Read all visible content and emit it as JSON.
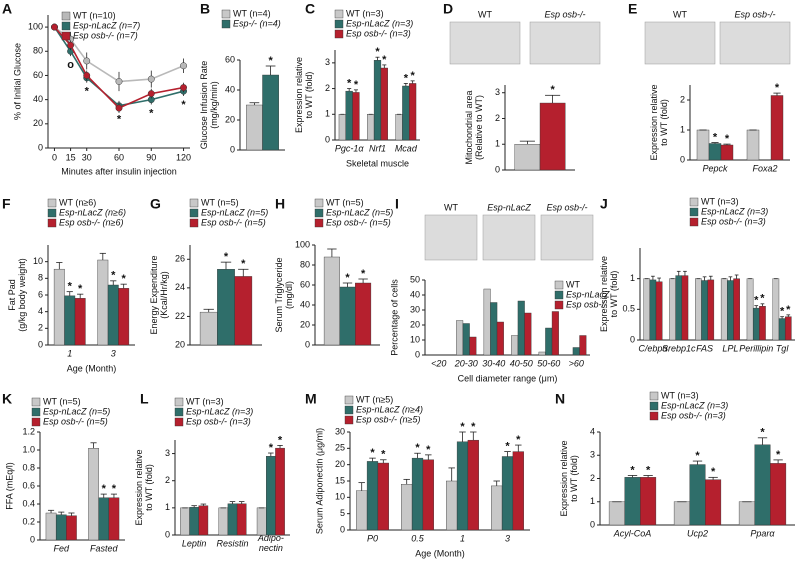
{
  "chart_data": [
    {
      "type": "line",
      "label": "A",
      "ylabel": "% of Initial Glucose",
      "xlabel": "Minutes after insulin injection",
      "x": [
        0,
        15,
        30,
        60,
        90,
        120
      ],
      "xlim": [
        -6,
        126
      ],
      "xticks": [
        0,
        15,
        30,
        60,
        90,
        120
      ],
      "ylim": [
        0,
        110
      ],
      "yticks": [
        0,
        20,
        40,
        60,
        80,
        100
      ],
      "series": [
        {
          "name": "WT (n=10)",
          "color": "#b9b9b9",
          "values": [
            100,
            90,
            72,
            55,
            57,
            68
          ],
          "errors": [
            0,
            6,
            7,
            8,
            7,
            6
          ]
        },
        {
          "name": "Esp-nLacZ (n=7)",
          "color": "#2f6e6a",
          "values": [
            100,
            80,
            58,
            35,
            40,
            47
          ],
          "errors": [
            0,
            4,
            4,
            4,
            4,
            4
          ],
          "marks": [
            null,
            "o",
            "*",
            "*",
            "*",
            "*"
          ]
        },
        {
          "name": "Esp osb-/- (n=7)",
          "color": "#b5202e",
          "values": [
            100,
            85,
            60,
            33,
            45,
            50
          ],
          "errors": [
            0,
            4,
            4,
            4,
            4,
            4
          ]
        }
      ]
    },
    {
      "type": "bar",
      "label": "B",
      "ylabel": "Glucose Infusion Rate\n(mg/kg/min)",
      "categories": [
        null
      ],
      "ylim": [
        0,
        60
      ],
      "yticks": [
        0,
        20,
        40,
        60
      ],
      "series": [
        {
          "name": "WT (n=4)",
          "color": "#c8c8c8",
          "values": [
            30
          ],
          "errors": [
            1.5
          ]
        },
        {
          "name": "Esp-/- (n=4)",
          "color": "#2f6e6a",
          "values": [
            50
          ],
          "errors": [
            6
          ],
          "marks": [
            "*"
          ]
        }
      ]
    },
    {
      "type": "bar",
      "label": "C",
      "ylabel": "Expression relative\nto WT (fold)",
      "xlabel": "Skeletal muscle",
      "categories": [
        "Pgc-1α",
        "Nrf1",
        "Mcad"
      ],
      "ylim": [
        0,
        3.5
      ],
      "yticks": [
        0,
        1,
        2,
        3
      ],
      "series": [
        {
          "name": "WT (n=3)",
          "color": "#c8c8c8",
          "values": [
            1,
            1,
            1
          ],
          "errors": [
            0,
            0,
            0
          ]
        },
        {
          "name": "Esp-nLacZ (n=3)",
          "color": "#2f6e6a",
          "values": [
            1.9,
            3.1,
            2.1
          ],
          "errors": [
            0.1,
            0.12,
            0.1
          ],
          "marks": [
            "*",
            "*",
            "*"
          ]
        },
        {
          "name": "Esp osb-/- (n=3)",
          "color": "#b5202e",
          "values": [
            1.85,
            2.8,
            2.2
          ],
          "errors": [
            0.1,
            0.12,
            0.1
          ],
          "marks": [
            "*",
            "*",
            "*"
          ]
        }
      ]
    },
    {
      "type": "bar",
      "label": "D",
      "ylabel": "Mitochondrial area\n(Relative to WT)",
      "images": [
        "WT",
        "Esp osb-/-"
      ],
      "categories": [
        null
      ],
      "ylim": [
        0,
        3.3
      ],
      "yticks": [
        0,
        1,
        2,
        3
      ],
      "series": [
        {
          "color": "#c8c8c8",
          "values": [
            1
          ],
          "errors": [
            0.12
          ]
        },
        {
          "color": "#b5202e",
          "values": [
            2.6
          ],
          "errors": [
            0.3
          ],
          "marks": [
            "*"
          ]
        }
      ]
    },
    {
      "type": "bar",
      "label": "E",
      "ylabel": "Expression relative\nto WT (fold)",
      "images": [
        "WT",
        "Esp osb-/-"
      ],
      "categories": [
        "Pepck",
        "Foxa2"
      ],
      "ylim": [
        0,
        2.5
      ],
      "yticks": [
        0,
        1,
        2
      ],
      "series": [
        {
          "color": "#c8c8c8",
          "values": [
            1,
            1
          ],
          "errors": [
            0,
            0
          ]
        },
        {
          "color": "#2f6e6a",
          "values": [
            0.55,
            null
          ],
          "errors": [
            0.03,
            null
          ],
          "marks": [
            "*",
            null
          ]
        },
        {
          "color": "#b5202e",
          "values": [
            0.5,
            2.15
          ],
          "errors": [
            0.03,
            0.08
          ],
          "marks": [
            "*",
            "*"
          ]
        }
      ]
    },
    {
      "type": "bar",
      "label": "F",
      "ylabel": "Fat Pad\n(g/kg body weight)",
      "xlabel": "Age (Month)",
      "categories": [
        "1",
        "3"
      ],
      "ylim": [
        0,
        12
      ],
      "yticks": [
        0,
        2,
        4,
        6,
        8,
        10
      ],
      "series": [
        {
          "name": "WT (n≥6)",
          "color": "#c8c8c8",
          "values": [
            9.1,
            10.2
          ],
          "errors": [
            0.8,
            0.8
          ]
        },
        {
          "name": "Esp-nLacZ (n≥6)",
          "color": "#2f6e6a",
          "values": [
            5.9,
            7.2
          ],
          "errors": [
            0.5,
            0.5
          ],
          "marks": [
            "*",
            "*"
          ]
        },
        {
          "name": "Esp osb-/- (n≥6)",
          "color": "#b5202e",
          "values": [
            5.6,
            6.8
          ],
          "errors": [
            0.5,
            0.5
          ],
          "marks": [
            "*",
            "*"
          ]
        }
      ]
    },
    {
      "type": "bar",
      "label": "G",
      "ylabel": "Energy Expenditure\n(Kcal/Hr/kg)",
      "categories": [
        null
      ],
      "ylim": [
        20,
        27
      ],
      "yticks": [
        20,
        22,
        24,
        26
      ],
      "series": [
        {
          "name": "WT (n=5)",
          "color": "#c8c8c8",
          "values": [
            22.3
          ],
          "errors": [
            0.2
          ]
        },
        {
          "name": "Esp-nLacZ (n=5)",
          "color": "#2f6e6a",
          "values": [
            25.3
          ],
          "errors": [
            0.5
          ],
          "marks": [
            "*"
          ]
        },
        {
          "name": "Esp osb-/- (n=5)",
          "color": "#b5202e",
          "values": [
            24.8
          ],
          "errors": [
            0.5
          ],
          "marks": [
            "*"
          ]
        }
      ]
    },
    {
      "type": "bar",
      "label": "H",
      "ylabel": "Serum Triglyceride\n(mg/dl)",
      "categories": [
        null
      ],
      "ylim": [
        0,
        100
      ],
      "yticks": [
        0,
        20,
        40,
        60,
        80,
        100
      ],
      "series": [
        {
          "name": "WT (n=5)",
          "color": "#c8c8c8",
          "values": [
            88
          ],
          "errors": [
            8
          ]
        },
        {
          "name": "Esp-nLacZ (n=5)",
          "color": "#2f6e6a",
          "values": [
            58
          ],
          "errors": [
            4
          ],
          "marks": [
            "*"
          ]
        },
        {
          "name": "Esp osb-/- (n=5)",
          "color": "#b5202e",
          "values": [
            62
          ],
          "errors": [
            4
          ],
          "marks": [
            "*"
          ]
        }
      ]
    },
    {
      "type": "bar",
      "label": "I",
      "ylabel": "Percentage of cells",
      "xlabel": "Cell diameter range (μm)",
      "images": [
        "WT",
        "Esp-nLacZ",
        "Esp osb-/-"
      ],
      "categories": [
        "<20",
        "20-30",
        "30-40",
        "40-50",
        "50-60",
        ">60"
      ],
      "ylim": [
        0,
        50
      ],
      "yticks": [
        0,
        10,
        20,
        30,
        40,
        50
      ],
      "series": [
        {
          "name": "WT",
          "color": "#c8c8c8",
          "values": [
            0,
            23,
            44,
            13,
            2,
            0
          ]
        },
        {
          "name": "Esp-nLacZ",
          "color": "#2f6e6a",
          "values": [
            0,
            21,
            35,
            36,
            18,
            5
          ]
        },
        {
          "name": "Esp osb-/-",
          "color": "#b5202e",
          "values": [
            0,
            12,
            22,
            28,
            29,
            13
          ]
        }
      ]
    },
    {
      "type": "bar",
      "label": "J",
      "ylabel": "Expression relative\nto WT (fold)",
      "categories": [
        "C/ebpα",
        "Srebp1c",
        "FAS",
        "LPL",
        "Perillipin",
        "Tgl"
      ],
      "ylim": [
        0,
        1.5
      ],
      "yticks": [
        0,
        0.5,
        1
      ],
      "series": [
        {
          "name": "WT (n=3)",
          "color": "#c8c8c8",
          "values": [
            1,
            1,
            1,
            1,
            1,
            1
          ],
          "errors": [
            0,
            0,
            0,
            0,
            0,
            0
          ]
        },
        {
          "name": "Esp-nLacZ (n=3)",
          "color": "#2f6e6a",
          "values": [
            0.98,
            1.05,
            0.97,
            0.97,
            0.52,
            0.35
          ],
          "errors": [
            0.06,
            0.07,
            0.06,
            0.06,
            0.04,
            0.03
          ],
          "marks": [
            null,
            null,
            null,
            null,
            "*",
            "*"
          ]
        },
        {
          "name": "Esp osb-/- (n=3)",
          "color": "#b5202e",
          "values": [
            0.95,
            1.05,
            0.98,
            1.0,
            0.55,
            0.38
          ],
          "errors": [
            0.06,
            0.07,
            0.06,
            0.06,
            0.04,
            0.03
          ],
          "marks": [
            null,
            null,
            null,
            null,
            "*",
            "*"
          ]
        }
      ]
    },
    {
      "type": "bar",
      "label": "K",
      "ylabel": "FFA (mEq/l)",
      "categories": [
        "Fed",
        "Fasted"
      ],
      "ylim": [
        0,
        1.2
      ],
      "yticks": [
        0,
        0.2,
        0.4,
        0.6,
        0.8,
        {
          "value": 1,
          "label": "1.0"
        },
        1.2
      ],
      "series": [
        {
          "name": "WT (n=5)",
          "color": "#c8c8c8",
          "values": [
            0.3,
            1.02
          ],
          "errors": [
            0.03,
            0.06
          ]
        },
        {
          "name": "Esp-nLacZ (n=5)",
          "color": "#2f6e6a",
          "values": [
            0.28,
            0.47
          ],
          "errors": [
            0.03,
            0.04
          ],
          "marks": [
            null,
            "*"
          ]
        },
        {
          "name": "Esp osb-/- (n=5)",
          "color": "#b5202e",
          "values": [
            0.27,
            0.47
          ],
          "errors": [
            0.03,
            0.04
          ],
          "marks": [
            null,
            "*"
          ]
        }
      ]
    },
    {
      "type": "bar",
      "label": "L",
      "ylabel": "Expression relative\nto WT (fold)",
      "categories": [
        "Leptin",
        "Resistin",
        "Adipo-\nnectin"
      ],
      "ylim": [
        0,
        3.5
      ],
      "yticks": [
        0,
        1,
        2,
        3
      ],
      "series": [
        {
          "name": "WT (n=3)",
          "color": "#c8c8c8",
          "values": [
            1,
            1,
            1
          ],
          "errors": [
            0,
            0,
            0
          ]
        },
        {
          "name": "Esp-nLacZ (n=3)",
          "color": "#2f6e6a",
          "values": [
            1.02,
            1.15,
            2.9
          ],
          "errors": [
            0.06,
            0.08,
            0.12
          ],
          "marks": [
            null,
            null,
            "*"
          ]
        },
        {
          "name": "Esp osb-/- (n=3)",
          "color": "#b5202e",
          "values": [
            1.08,
            1.15,
            3.2
          ],
          "errors": [
            0.06,
            0.08,
            0.1
          ],
          "marks": [
            null,
            null,
            "*"
          ]
        }
      ]
    },
    {
      "type": "bar",
      "label": "M",
      "ylabel": "Serum Adiponectin (μg/ml)",
      "xlabel": "Age (Month)",
      "categories": [
        "P0",
        "0.5",
        "1",
        "3"
      ],
      "ylim": [
        0,
        30
      ],
      "yticks": [
        0,
        5,
        10,
        15,
        20,
        25,
        30
      ],
      "series": [
        {
          "name": "WT (n≥5)",
          "color": "#c8c8c8",
          "values": [
            12,
            14,
            15,
            13.5
          ],
          "errors": [
            2.5,
            1.5,
            4,
            1.5
          ]
        },
        {
          "name": "Esp-nLacZ (n≥4)",
          "color": "#2f6e6a",
          "values": [
            21,
            22,
            27,
            22.5
          ],
          "errors": [
            1,
            1.5,
            3,
            1.5
          ],
          "marks": [
            "*",
            "*",
            "*",
            "*"
          ]
        },
        {
          "name": "Esp osb-/- (n≥5)",
          "color": "#b5202e",
          "values": [
            20.5,
            21.5,
            27.5,
            24
          ],
          "errors": [
            1,
            1.5,
            2.5,
            2
          ],
          "marks": [
            "*",
            "*",
            "*",
            "*"
          ]
        }
      ]
    },
    {
      "type": "bar",
      "label": "N",
      "ylabel": "Expression relative\nto WT (fold)",
      "categories": [
        "Acyl-CoA",
        "Ucp2",
        "Pparα"
      ],
      "ylim": [
        0,
        4
      ],
      "yticks": [
        0,
        1,
        2,
        3,
        4
      ],
      "series": [
        {
          "name": "WT (n=3)",
          "color": "#c8c8c8",
          "values": [
            1,
            1,
            1
          ],
          "errors": [
            0,
            0,
            0
          ]
        },
        {
          "name": "Esp-nLacZ (n=3)",
          "color": "#2f6e6a",
          "values": [
            2.05,
            2.6,
            3.45
          ],
          "errors": [
            0.08,
            0.15,
            0.3
          ],
          "marks": [
            "*",
            "*",
            "*"
          ]
        },
        {
          "name": "Esp osb-/- (n=3)",
          "color": "#b5202e",
          "values": [
            2.05,
            1.95,
            2.65
          ],
          "errors": [
            0.08,
            0.1,
            0.15
          ],
          "marks": [
            "*",
            "*",
            "*"
          ]
        }
      ]
    }
  ]
}
